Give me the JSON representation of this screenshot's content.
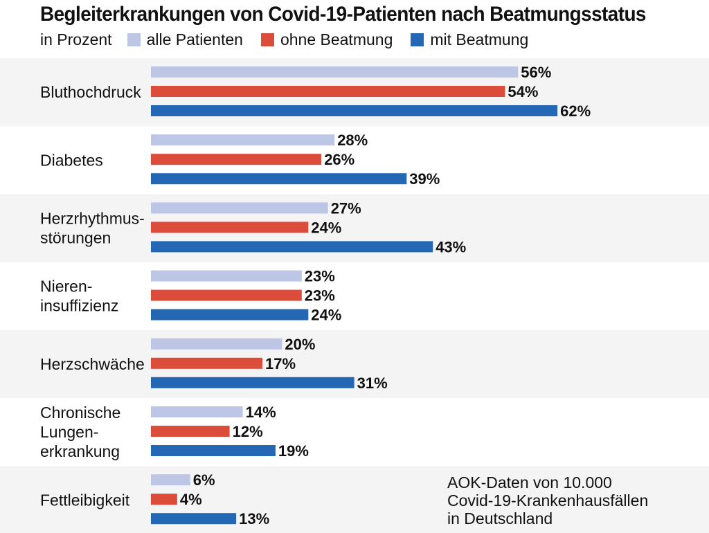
{
  "chart_data": {
    "type": "bar",
    "orientation": "horizontal",
    "title": "Begleiterkrankungen von Covid-19-Patienten nach Beatmungsstatus",
    "unit_label": "in Prozent",
    "legend_placement": "top",
    "categories": [
      [
        "Bluthochdruck"
      ],
      [
        "Diabetes"
      ],
      [
        "Herzrhythmus-",
        "störungen"
      ],
      [
        "Nieren-",
        "insuffizienz"
      ],
      [
        "Herzschwäche"
      ],
      [
        "Chronische",
        "Lungen-",
        "erkrankung"
      ],
      [
        "Fettleibigkeit"
      ]
    ],
    "series": [
      {
        "name": "alle Patienten",
        "color": "#bec6e6",
        "values": [
          56,
          28,
          27,
          23,
          20,
          14,
          6
        ]
      },
      {
        "name": "ohne Beatmung",
        "color": "#dc4c3a",
        "values": [
          54,
          26,
          24,
          23,
          17,
          12,
          4
        ]
      },
      {
        "name": "mit Beatmung",
        "color": "#2367b5",
        "values": [
          62,
          39,
          43,
          24,
          31,
          19,
          13
        ]
      }
    ],
    "value_suffix": "%",
    "xlim": [
      0,
      100
    ],
    "grid": false,
    "row_band_color": "#f4f4f4"
  },
  "source_note": [
    "AOK-Daten von 10.000",
    "Covid-19-Krankenhausfällen",
    "in Deutschland"
  ]
}
